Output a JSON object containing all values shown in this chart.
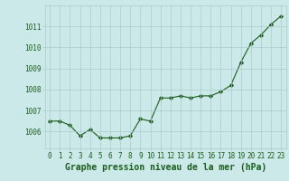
{
  "x": [
    0,
    1,
    2,
    3,
    4,
    5,
    6,
    7,
    8,
    9,
    10,
    11,
    12,
    13,
    14,
    15,
    16,
    17,
    18,
    19,
    20,
    21,
    22,
    23
  ],
  "y": [
    1006.5,
    1006.5,
    1006.3,
    1005.8,
    1006.1,
    1005.7,
    1005.7,
    1005.7,
    1005.8,
    1006.6,
    1006.5,
    1007.6,
    1007.6,
    1007.7,
    1007.6,
    1007.7,
    1007.7,
    1007.9,
    1008.2,
    1009.3,
    1010.2,
    1010.6,
    1011.1,
    1011.5
  ],
  "line_color": "#1a5c1a",
  "marker": "D",
  "marker_size": 2.2,
  "background_color": "#cce9e9",
  "grid_color": "#aacccc",
  "xlabel": "Graphe pression niveau de la mer (hPa)",
  "xlabel_fontsize": 7,
  "ylabel_ticks": [
    1006,
    1007,
    1008,
    1009,
    1010,
    1011
  ],
  "ylim": [
    1005.2,
    1012.0
  ],
  "xlim": [
    -0.5,
    23.5
  ],
  "xticks": [
    0,
    1,
    2,
    3,
    4,
    5,
    6,
    7,
    8,
    9,
    10,
    11,
    12,
    13,
    14,
    15,
    16,
    17,
    18,
    19,
    20,
    21,
    22,
    23
  ],
  "tick_fontsize": 5.5,
  "label_color": "#1a5c1a"
}
